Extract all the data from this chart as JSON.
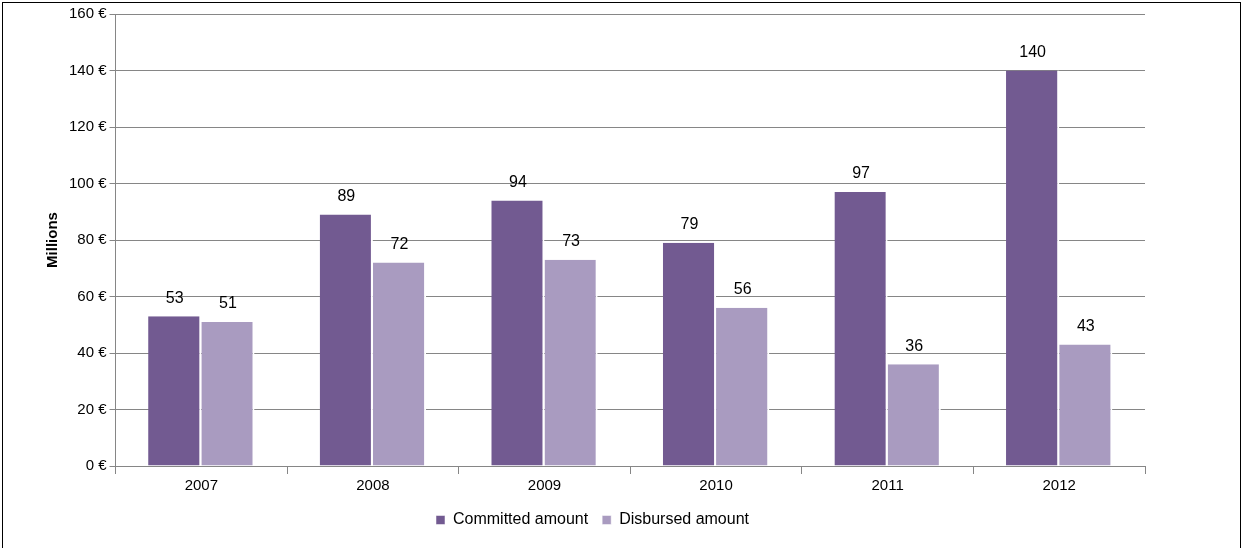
{
  "chart_data": {
    "type": "bar",
    "ylabel": "Millions",
    "categories": [
      "2007",
      "2008",
      "2009",
      "2010",
      "2011",
      "2012"
    ],
    "series": [
      {
        "name": "Committed amount",
        "color": "#725a91",
        "values": [
          53,
          89,
          94,
          79,
          97,
          140
        ]
      },
      {
        "name": "Disbursed amount",
        "color": "#a99bc0",
        "values": [
          51,
          72,
          73,
          56,
          36,
          43
        ]
      }
    ],
    "ylim": [
      0,
      160
    ],
    "yticks": [
      {
        "value": 0,
        "label": "0 €"
      },
      {
        "value": 20,
        "label": "20 €"
      },
      {
        "value": 40,
        "label": "40 €"
      },
      {
        "value": 60,
        "label": "60 €"
      },
      {
        "value": 80,
        "label": "80 €"
      },
      {
        "value": 100,
        "label": "100 €"
      },
      {
        "value": 120,
        "label": "120 €"
      },
      {
        "value": 140,
        "label": "140 €"
      },
      {
        "value": 160,
        "label": "160 €"
      }
    ],
    "grid": "y",
    "legend": "bottom",
    "data_labels": true
  }
}
